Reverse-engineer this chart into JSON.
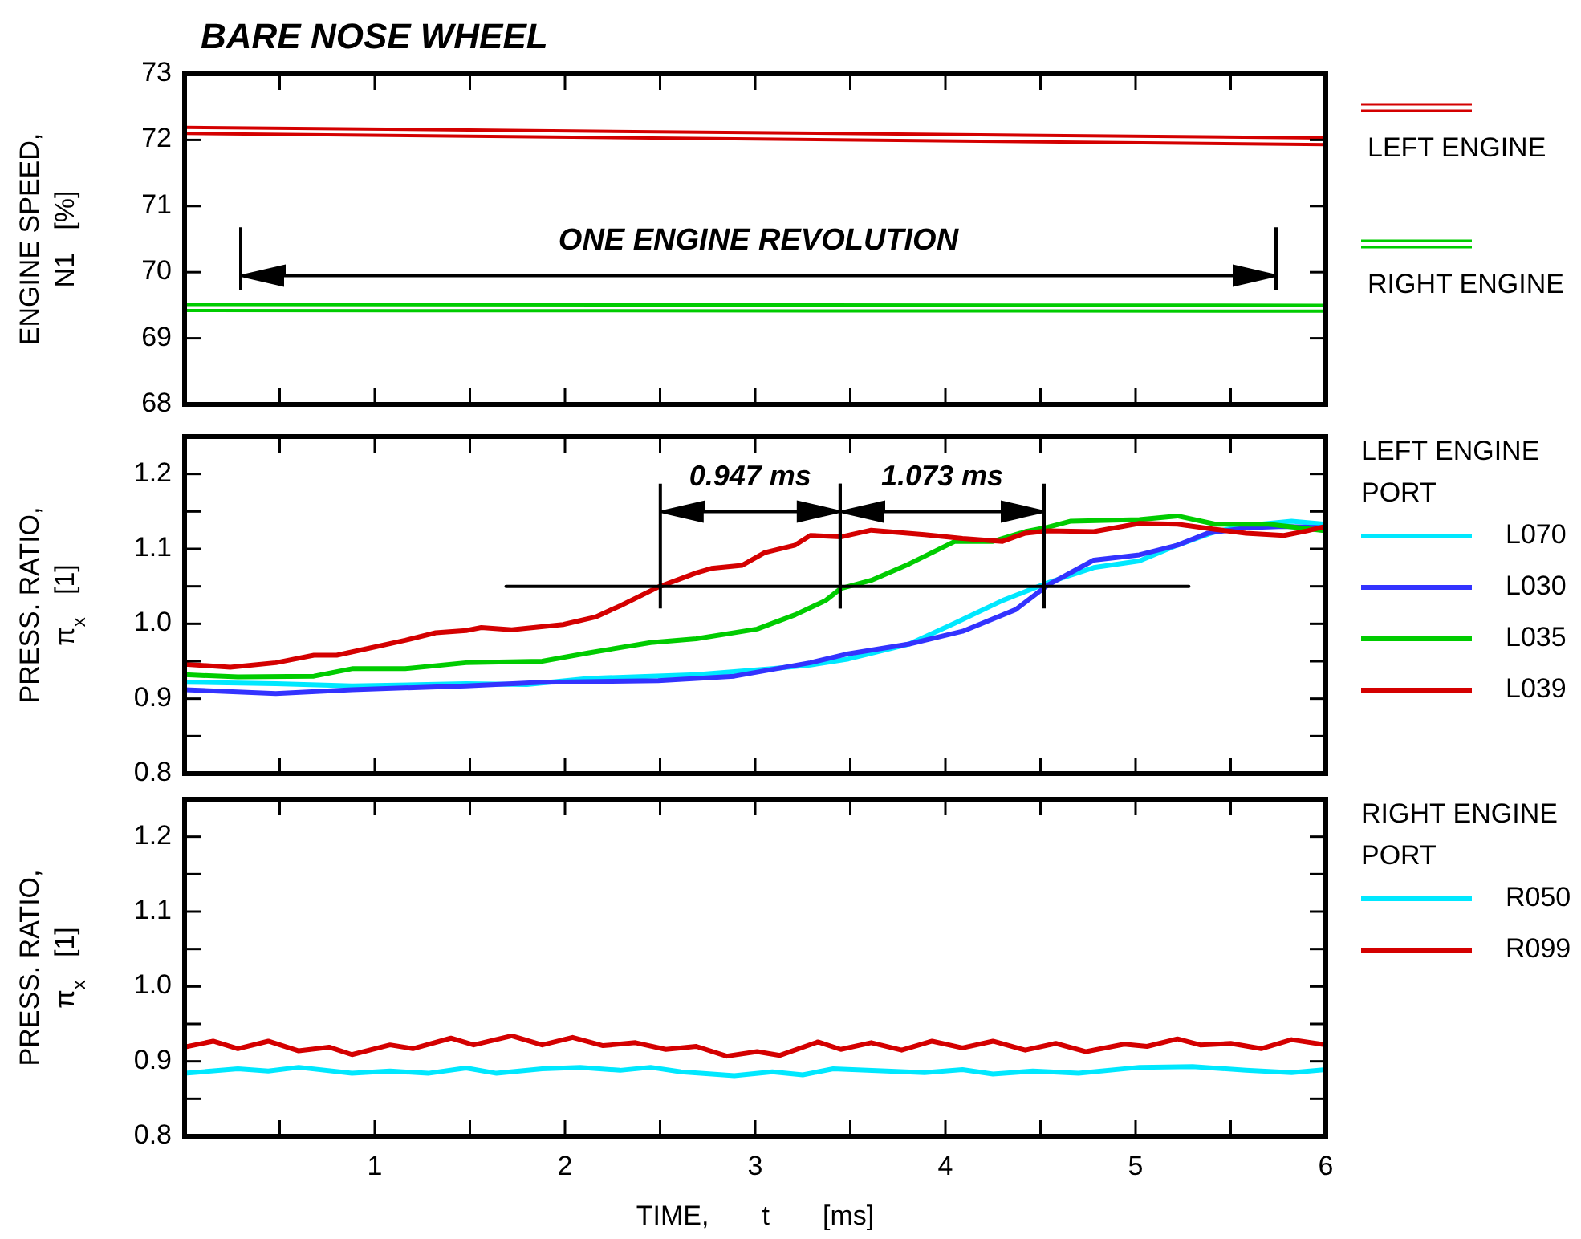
{
  "chart_data": [
    {
      "type": "line",
      "title": "BARE NOSE WHEEL",
      "ylabel": "ENGINE SPEED,\nN1   [%]",
      "xlim": [
        0,
        6
      ],
      "ylim": [
        68,
        73
      ],
      "xticks": [
        0.5,
        1,
        1.5,
        2,
        2.5,
        3,
        3.5,
        4,
        4.5,
        5,
        5.5
      ],
      "yticks": [
        68,
        69,
        70,
        71,
        72,
        73
      ],
      "tick_labels": "y",
      "legend": "right",
      "annotations": [
        "ONE ENGINE REVOLUTION"
      ],
      "series": [
        {
          "name": "LEFT ENGINE",
          "color": "#d40000",
          "x": [
            0,
            6
          ],
          "values": [
            72.19,
            72.03
          ]
        },
        {
          "color": "#d40000",
          "x": [
            0,
            6
          ],
          "values": [
            72.1,
            71.93
          ]
        },
        {
          "name": "RIGHT ENGINE",
          "color": "#00cc00",
          "x": [
            0,
            6
          ],
          "values": [
            69.51,
            69.5
          ]
        },
        {
          "color": "#00cc00",
          "x": [
            0,
            6
          ],
          "values": [
            69.42,
            69.41
          ]
        }
      ]
    },
    {
      "type": "line",
      "ylabel": "PRESS. RATIO,\nπ$_{x}$   [1]",
      "legend_title": "LEFT ENGINE\nPORT",
      "xlim": [
        0,
        6
      ],
      "ylim": [
        0.8,
        1.25
      ],
      "xticks": [
        0.5,
        1,
        1.5,
        2,
        2.5,
        3,
        3.5,
        4,
        4.5,
        5,
        5.5
      ],
      "yticks": [
        0.8,
        {
          "value": 0.85,
          "label": null
        },
        0.9,
        {
          "value": 0.95,
          "label": null
        },
        {
          "value": 1,
          "label": "1.0"
        },
        {
          "value": 1.05,
          "label": null
        },
        1.1,
        {
          "value": 1.15,
          "label": null
        },
        1.2
      ],
      "tick_labels": "y",
      "legend": "right",
      "annotations": [
        "0.947 ms",
        "1.073 ms"
      ],
      "series": [
        {
          "name": "L070",
          "color": "#00e8ff",
          "x": [
            0,
            0.48,
            0.88,
            1.48,
            1.8,
            2.12,
            2.69,
            3.09,
            3.29,
            3.49,
            3.81,
            4.05,
            4.3,
            4.54,
            4.78,
            5.02,
            5.22,
            5.42,
            5.58,
            5.82,
            6
          ],
          "values": [
            0.922,
            0.92,
            0.917,
            0.92,
            0.919,
            0.927,
            0.932,
            0.94,
            0.945,
            0.953,
            0.973,
            1.001,
            1.031,
            1.055,
            1.075,
            1.084,
            1.105,
            1.123,
            1.131,
            1.137,
            1.133
          ]
        },
        {
          "name": "L030",
          "color": "#3333ff",
          "x": [
            0,
            0.48,
            0.88,
            1.48,
            1.88,
            2.49,
            2.89,
            3.29,
            3.49,
            3.81,
            4.09,
            4.37,
            4.54,
            4.78,
            5.02,
            5.22,
            5.38,
            5.58,
            5.78,
            6
          ],
          "values": [
            0.912,
            0.907,
            0.912,
            0.917,
            0.922,
            0.924,
            0.93,
            0.948,
            0.96,
            0.973,
            0.99,
            1.019,
            1.052,
            1.085,
            1.092,
            1.105,
            1.121,
            1.128,
            1.13,
            1.128
          ]
        },
        {
          "name": "L035",
          "color": "#00cc00",
          "x": [
            0,
            0.28,
            0.68,
            0.88,
            1.16,
            1.48,
            1.88,
            2.12,
            2.45,
            2.69,
            3.01,
            3.21,
            3.37,
            3.45,
            3.61,
            3.81,
            4.05,
            4.25,
            4.42,
            4.54,
            4.66,
            5.02,
            5.22,
            5.42,
            5.7,
            6
          ],
          "values": [
            0.932,
            0.929,
            0.93,
            0.94,
            0.94,
            0.948,
            0.95,
            0.961,
            0.975,
            0.98,
            0.993,
            1.012,
            1.031,
            1.047,
            1.058,
            1.08,
            1.11,
            1.11,
            1.123,
            1.129,
            1.137,
            1.139,
            1.144,
            1.133,
            1.133,
            1.124
          ]
        },
        {
          "name": "L039",
          "color": "#d40000",
          "x": [
            0,
            0.24,
            0.48,
            0.68,
            0.8,
            0.98,
            1.16,
            1.32,
            1.48,
            1.56,
            1.72,
            1.99,
            2.16,
            2.29,
            2.49,
            2.69,
            2.77,
            2.93,
            3.05,
            3.21,
            3.29,
            3.45,
            3.61,
            3.89,
            4.09,
            4.3,
            4.42,
            4.54,
            4.78,
            5.02,
            5.22,
            5.42,
            5.58,
            5.78,
            5.9,
            6
          ],
          "values": [
            0.946,
            0.942,
            0.948,
            0.958,
            0.958,
            0.968,
            0.978,
            0.988,
            0.991,
            0.995,
            0.992,
            0.999,
            1.009,
            1.024,
            1.049,
            1.068,
            1.074,
            1.078,
            1.095,
            1.105,
            1.118,
            1.116,
            1.125,
            1.119,
            1.114,
            1.11,
            1.121,
            1.124,
            1.123,
            1.134,
            1.133,
            1.126,
            1.121,
            1.118,
            1.124,
            1.13
          ]
        },
        {
          "color": "#000000",
          "x": [
            1.69,
            5.28
          ],
          "values": [
            1.05,
            1.05
          ]
        }
      ]
    },
    {
      "type": "line",
      "ylabel": "PRESS. RATIO,\nπ$_{x}$   [1]",
      "xlabel": "TIME,       t       [ms]",
      "legend_title": "RIGHT ENGINE\nPORT",
      "xlim": [
        0,
        6
      ],
      "ylim": [
        0.8,
        1.25
      ],
      "xticks": [
        {
          "value": 0.5,
          "label": null
        },
        1,
        {
          "value": 1.5,
          "label": null
        },
        2,
        {
          "value": 2.5,
          "label": null
        },
        3,
        {
          "value": 3.5,
          "label": null
        },
        4,
        {
          "value": 4.5,
          "label": null
        },
        5,
        {
          "value": 5.5,
          "label": null
        },
        6
      ],
      "yticks": [
        0.8,
        {
          "value": 0.85,
          "label": null
        },
        0.9,
        {
          "value": 0.95,
          "label": null
        },
        {
          "value": 1,
          "label": "1.0"
        },
        {
          "value": 1.05,
          "label": null
        },
        1.1,
        {
          "value": 1.15,
          "label": null
        },
        1.2
      ],
      "legend": "right",
      "series": [
        {
          "name": "R050",
          "color": "#00e8ff",
          "x": [
            0,
            0.28,
            0.44,
            0.6,
            0.88,
            1.08,
            1.28,
            1.48,
            1.64,
            1.88,
            2.08,
            2.29,
            2.45,
            2.61,
            2.89,
            3.09,
            3.25,
            3.41,
            3.69,
            3.89,
            4.09,
            4.25,
            4.46,
            4.7,
            5.02,
            5.3,
            5.58,
            5.82,
            6
          ],
          "values": [
            0.884,
            0.89,
            0.887,
            0.892,
            0.884,
            0.887,
            0.884,
            0.891,
            0.884,
            0.89,
            0.892,
            0.888,
            0.892,
            0.886,
            0.881,
            0.886,
            0.882,
            0.89,
            0.887,
            0.885,
            0.889,
            0.883,
            0.887,
            0.884,
            0.892,
            0.893,
            0.888,
            0.885,
            0.889
          ]
        },
        {
          "name": "R099",
          "color": "#d40000",
          "x": [
            0,
            0.15,
            0.28,
            0.44,
            0.6,
            0.76,
            0.88,
            1.08,
            1.2,
            1.4,
            1.52,
            1.72,
            1.88,
            2.04,
            2.2,
            2.37,
            2.53,
            2.69,
            2.85,
            3.01,
            3.13,
            3.33,
            3.45,
            3.61,
            3.77,
            3.93,
            4.09,
            4.25,
            4.42,
            4.58,
            4.74,
            4.94,
            5.06,
            5.22,
            5.34,
            5.5,
            5.66,
            5.82,
            6
          ],
          "values": [
            0.919,
            0.927,
            0.917,
            0.927,
            0.914,
            0.919,
            0.909,
            0.922,
            0.917,
            0.931,
            0.922,
            0.934,
            0.922,
            0.932,
            0.921,
            0.925,
            0.916,
            0.92,
            0.907,
            0.913,
            0.908,
            0.926,
            0.916,
            0.925,
            0.915,
            0.927,
            0.918,
            0.927,
            0.915,
            0.924,
            0.913,
            0.923,
            0.92,
            0.93,
            0.922,
            0.924,
            0.917,
            0.929,
            0.922
          ]
        }
      ]
    }
  ]
}
